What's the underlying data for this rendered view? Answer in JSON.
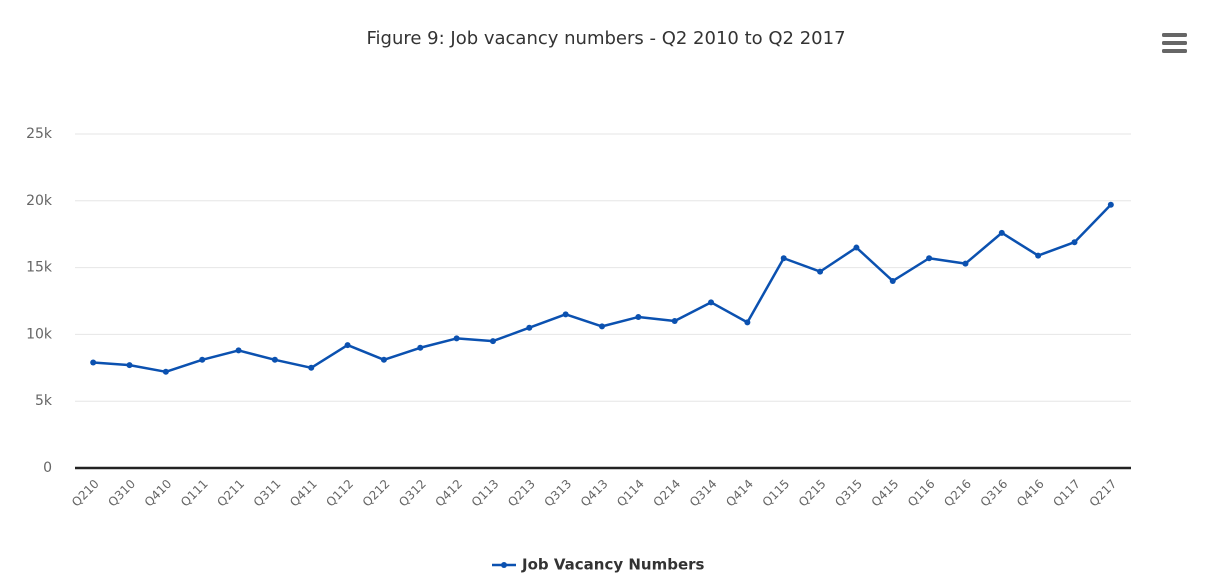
{
  "chart_data": {
    "type": "line",
    "title": "Figure 9: Job vacancy numbers - Q2 2010 to Q2 2017",
    "categories": [
      "Q210",
      "Q310",
      "Q410",
      "Q111",
      "Q211",
      "Q311",
      "Q411",
      "Q112",
      "Q212",
      "Q312",
      "Q412",
      "Q113",
      "Q213",
      "Q313",
      "Q413",
      "Q114",
      "Q214",
      "Q314",
      "Q414",
      "Q115",
      "Q215",
      "Q315",
      "Q415",
      "Q116",
      "Q216",
      "Q316",
      "Q416",
      "Q117",
      "Q217"
    ],
    "series": [
      {
        "name": "Job Vacancy Numbers",
        "color": "#0b51b0",
        "values": [
          7900,
          7700,
          7200,
          8100,
          8800,
          8100,
          7500,
          9200,
          8100,
          9000,
          9700,
          9500,
          10500,
          11500,
          10600,
          11300,
          11000,
          12400,
          10900,
          15700,
          14700,
          16500,
          14000,
          15700,
          15300,
          17600,
          15900,
          16900,
          19700
        ]
      }
    ],
    "ylim": [
      0,
      25000
    ],
    "yticks": [
      0,
      {
        "value": 5000,
        "label": "5k"
      },
      {
        "value": 10000,
        "label": "10k"
      },
      {
        "value": 15000,
        "label": "15k"
      },
      {
        "value": 20000,
        "label": "20k"
      },
      {
        "value": 25000,
        "label": "25k"
      }
    ],
    "grid": true,
    "legend": "bottom"
  }
}
